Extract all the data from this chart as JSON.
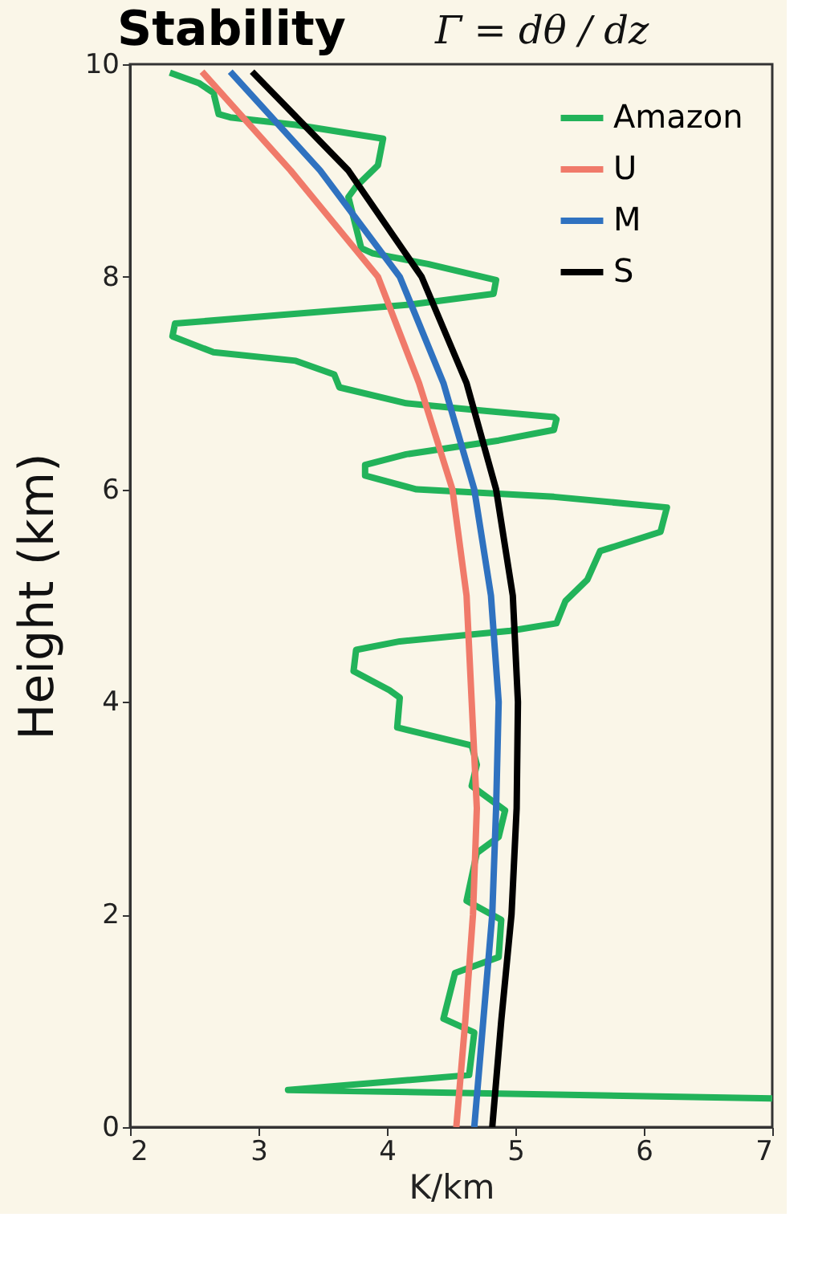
{
  "chart_data": {
    "type": "line",
    "title": "Stability",
    "subtitle": "Γ = dθ / dz",
    "xlabel": "K/km",
    "ylabel": "Height (km)",
    "xlim": [
      2,
      7
    ],
    "xticks": [
      2,
      3,
      4,
      5,
      6,
      7
    ],
    "ylim": [
      0,
      10
    ],
    "yticks": [
      0,
      2,
      4,
      6,
      8,
      10
    ],
    "grid": false,
    "legend": "top right",
    "line_style": "solid",
    "marker": "none",
    "series": [
      {
        "name": "Amazon",
        "color": "#22b35a",
        "x": [
          2.31,
          2.54,
          2.65,
          2.69,
          2.78,
          3.29,
          3.97,
          3.93,
          3.76,
          3.7,
          3.8,
          3.89,
          4.32,
          4.85,
          4.83,
          4.19,
          3.16,
          2.35,
          2.33,
          2.65,
          3.29,
          3.59,
          3.63,
          4.15,
          4.66,
          5.3,
          5.32,
          5.3,
          4.87,
          4.15,
          3.83,
          3.83,
          4.23,
          5.3,
          6.18,
          6.13,
          5.66,
          5.56,
          5.39,
          5.32,
          4.96,
          4.1,
          3.76,
          3.74,
          4.02,
          4.1,
          4.08,
          4.66,
          4.7,
          4.66,
          4.92,
          4.87,
          4.7,
          4.62,
          4.89,
          4.87,
          4.53,
          4.44,
          4.68,
          4.64,
          3.23,
          7.0
        ],
        "values": [
          9.92,
          9.82,
          9.73,
          9.53,
          9.5,
          9.43,
          9.3,
          9.05,
          8.85,
          8.75,
          8.27,
          8.22,
          8.12,
          7.97,
          7.84,
          7.74,
          7.64,
          7.56,
          7.44,
          7.29,
          7.21,
          7.08,
          6.96,
          6.81,
          6.75,
          6.68,
          6.66,
          6.56,
          6.46,
          6.33,
          6.23,
          6.13,
          6.0,
          5.93,
          5.83,
          5.6,
          5.42,
          5.15,
          4.95,
          4.74,
          4.67,
          4.57,
          4.49,
          4.29,
          4.11,
          4.04,
          3.76,
          3.59,
          3.41,
          3.21,
          2.98,
          2.73,
          2.58,
          2.13,
          1.95,
          1.6,
          1.45,
          1.02,
          0.89,
          0.49,
          0.35,
          0.27
        ]
      },
      {
        "name": "U",
        "color": "#f07a6a",
        "x": [
          2.56,
          3.25,
          3.93,
          4.25,
          4.51,
          4.62,
          4.66,
          4.7,
          4.67,
          4.61,
          4.54
        ],
        "values": [
          9.93,
          9,
          8,
          7,
          6,
          5,
          4,
          3,
          2,
          1,
          0
        ]
      },
      {
        "name": "M",
        "color": "#2f72c0",
        "x": [
          2.78,
          3.48,
          4.1,
          4.44,
          4.68,
          4.81,
          4.87,
          4.85,
          4.82,
          4.75,
          4.68
        ],
        "values": [
          9.93,
          9,
          8,
          7,
          6,
          5,
          4,
          3,
          2,
          1,
          0
        ]
      },
      {
        "name": "S",
        "color": "#000000",
        "x": [
          2.95,
          3.7,
          4.27,
          4.62,
          4.85,
          4.98,
          5.02,
          5.01,
          4.97,
          4.89,
          4.82
        ],
        "values": [
          9.93,
          9,
          8,
          7,
          6,
          5,
          4,
          3,
          2,
          1,
          0
        ]
      }
    ]
  }
}
